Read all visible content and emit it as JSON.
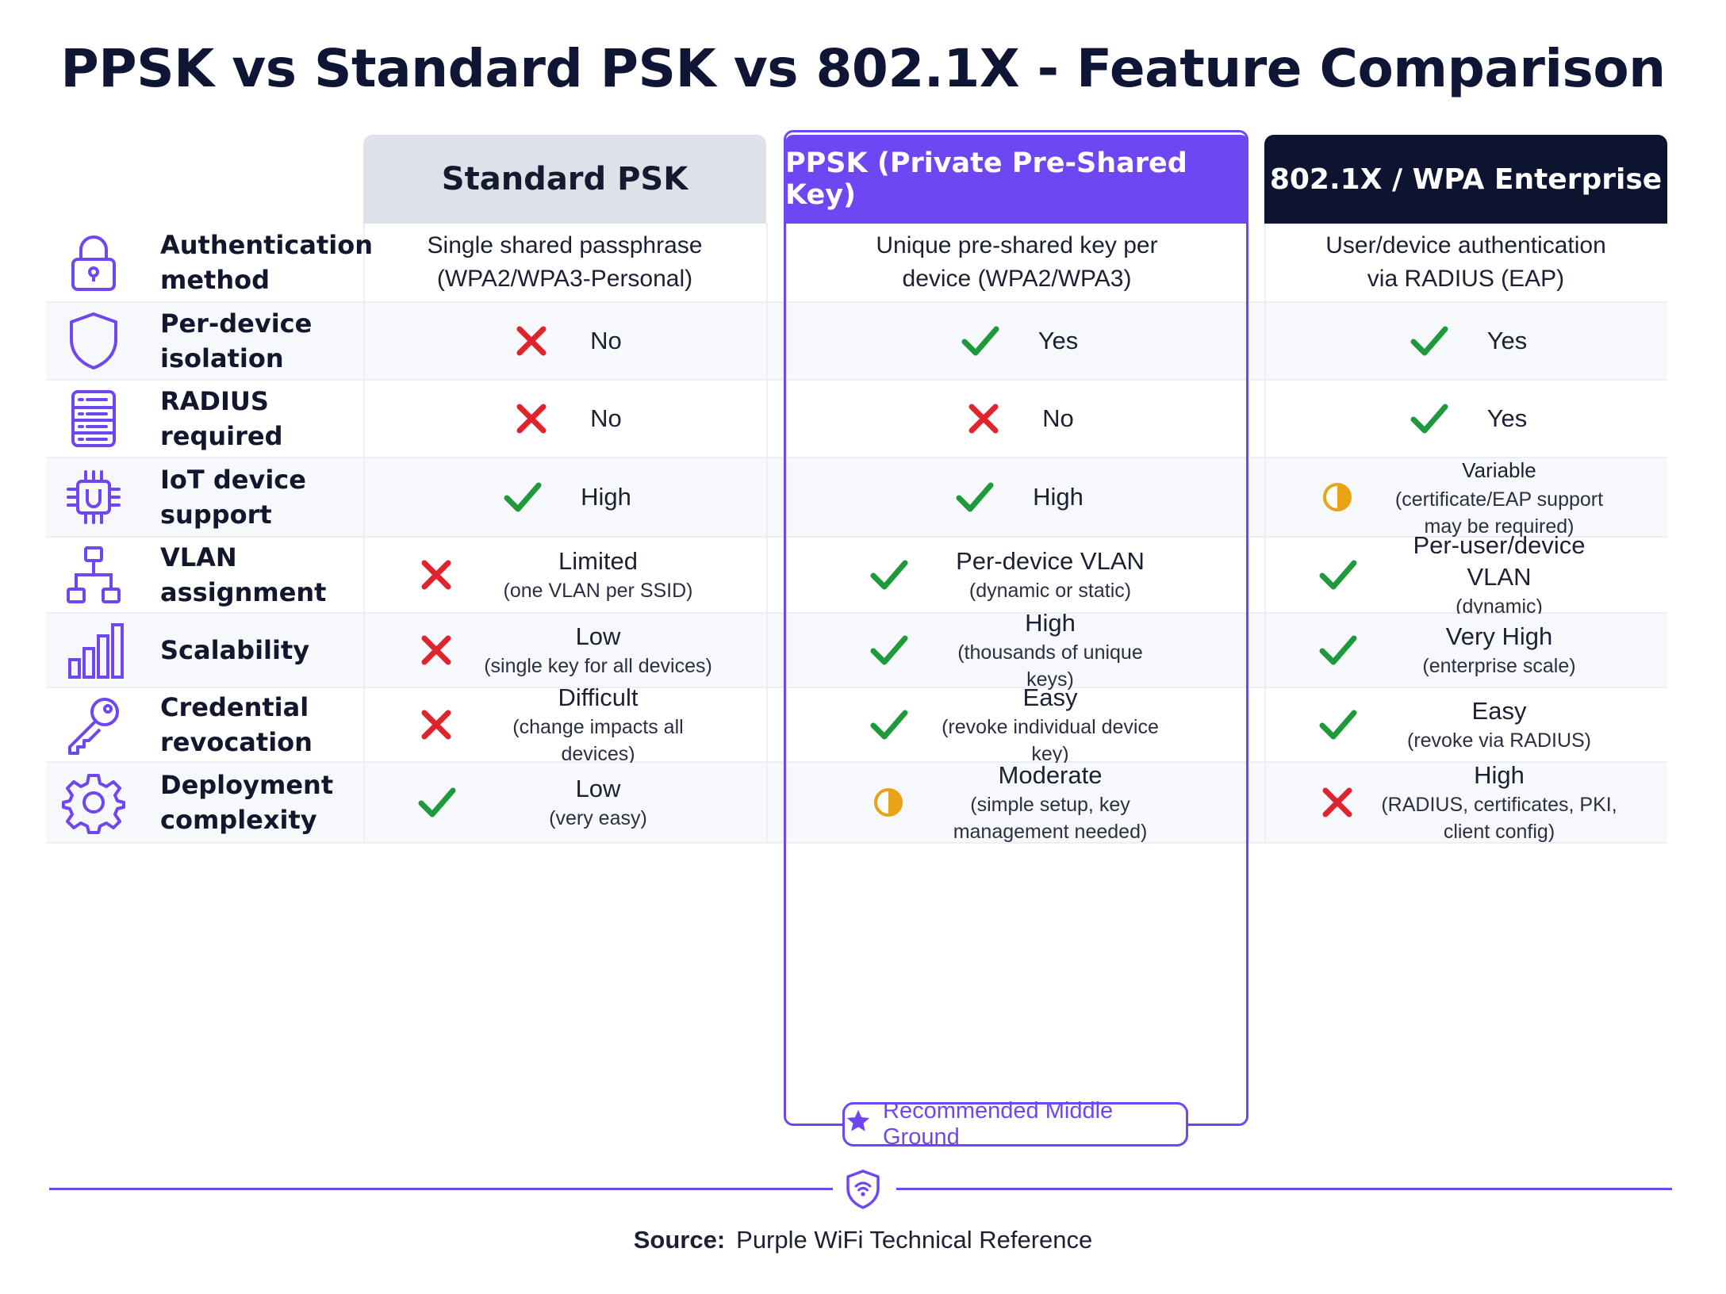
{
  "title": "PPSK vs Standard PSK vs 802.1X - Feature Comparison",
  "columns": [
    {
      "label": "Standard PSK"
    },
    {
      "label": "PPSK (Private Pre-Shared Key)"
    },
    {
      "label": "802.1X / WPA Enterprise"
    }
  ],
  "colors": {
    "accent": "#6e47f2",
    "check": "#1e9a3c",
    "cross": "#e0242d",
    "partial": "#e8a317",
    "dark": "#0d1430"
  },
  "rows": [
    {
      "feature": "Authentication method",
      "icon": "lock-icon",
      "cells": [
        {
          "type": "text",
          "main": "Single shared passphrase (WPA2/WPA3-Personal)"
        },
        {
          "type": "text",
          "main": "Unique pre-shared key per device (WPA2/WPA3)"
        },
        {
          "type": "text",
          "main": "User/device authentication via RADIUS (EAP)"
        }
      ]
    },
    {
      "feature": "Per-device isolation",
      "icon": "shield-icon",
      "cells": [
        {
          "type": "cross",
          "main": "No"
        },
        {
          "type": "check",
          "main": "Yes"
        },
        {
          "type": "check",
          "main": "Yes"
        }
      ]
    },
    {
      "feature": "RADIUS required",
      "icon": "server-icon",
      "cells": [
        {
          "type": "cross",
          "main": "No"
        },
        {
          "type": "cross",
          "main": "No"
        },
        {
          "type": "check",
          "main": "Yes"
        }
      ]
    },
    {
      "feature": "IoT device support",
      "icon": "chip-icon",
      "cells": [
        {
          "type": "check",
          "main": "High"
        },
        {
          "type": "check",
          "main": "High"
        },
        {
          "type": "partial",
          "main": "Variable",
          "sub": "(certificate/EAP support may be required)"
        }
      ]
    },
    {
      "feature": "VLAN assignment",
      "icon": "network-icon",
      "cells": [
        {
          "type": "cross",
          "main": "Limited",
          "sub": "(one VLAN per SSID)"
        },
        {
          "type": "check",
          "main": "Per-device VLAN",
          "sub": "(dynamic or static)"
        },
        {
          "type": "check",
          "main": "Per-user/device VLAN",
          "sub": "(dynamic)"
        }
      ]
    },
    {
      "feature": "Scalability",
      "icon": "bar-chart-icon",
      "cells": [
        {
          "type": "cross",
          "main": "Low",
          "sub": "(single key for all devices)"
        },
        {
          "type": "check",
          "main": "High",
          "sub": "(thousands of unique keys)"
        },
        {
          "type": "check",
          "main": "Very High",
          "sub": "(enterprise scale)"
        }
      ]
    },
    {
      "feature": "Credential revocation",
      "icon": "key-icon",
      "cells": [
        {
          "type": "cross",
          "main": "Difficult",
          "sub": "(change impacts all devices)"
        },
        {
          "type": "check",
          "main": "Easy",
          "sub": "(revoke individual device key)"
        },
        {
          "type": "check",
          "main": "Easy",
          "sub": "(revoke via RADIUS)"
        }
      ]
    },
    {
      "feature": "Deployment complexity",
      "icon": "gear-icon",
      "cells": [
        {
          "type": "check",
          "main": "Low",
          "sub": "(very easy)"
        },
        {
          "type": "partial",
          "main": "Moderate",
          "sub": "(simple setup, key management needed)"
        },
        {
          "type": "cross",
          "main": "High",
          "sub": "(RADIUS, certificates, PKI, client config)"
        }
      ]
    }
  ],
  "badge": {
    "label": "Recommended Middle Ground",
    "icon": "star-icon"
  },
  "footer": {
    "source_label": "Source:",
    "source_value": "Purple WiFi Technical Reference",
    "icon": "wifi-shield-icon"
  }
}
